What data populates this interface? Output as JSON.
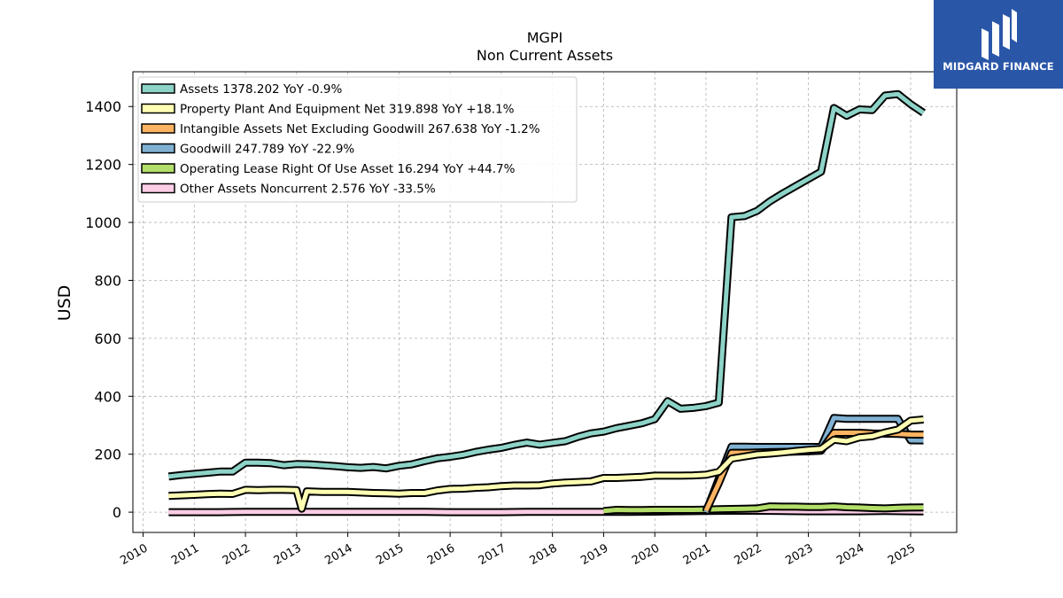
{
  "chart_data": {
    "type": "line",
    "title": "MGPI",
    "subtitle": "Non Current  Assets",
    "ylabel": "USD",
    "xlim": [
      2009.8,
      2025.9
    ],
    "ylim": [
      -70,
      1520
    ],
    "yticks": [
      0,
      200,
      400,
      600,
      800,
      1000,
      1200,
      1400
    ],
    "xticks": [
      2010,
      2011,
      2012,
      2013,
      2014,
      2015,
      2016,
      2017,
      2018,
      2019,
      2020,
      2021,
      2022,
      2023,
      2024,
      2025
    ],
    "grid": true,
    "legend_position": "upper-left",
    "series": [
      {
        "name": "Assets",
        "legend_label": "Assets  1378.202 YoY -0.9%",
        "color": "#8dd3c7",
        "x": [
          2010.5,
          2010.75,
          2011.0,
          2011.25,
          2011.5,
          2011.75,
          2012.0,
          2012.25,
          2012.5,
          2012.75,
          2013.0,
          2013.25,
          2013.5,
          2013.75,
          2014.0,
          2014.25,
          2014.5,
          2014.75,
          2015.0,
          2015.25,
          2015.5,
          2015.75,
          2016.0,
          2016.25,
          2016.5,
          2016.75,
          2017.0,
          2017.25,
          2017.5,
          2017.75,
          2018.0,
          2018.25,
          2018.5,
          2018.75,
          2019.0,
          2019.25,
          2019.5,
          2019.75,
          2020.0,
          2020.25,
          2020.5,
          2020.75,
          2021.0,
          2021.25,
          2021.5,
          2021.75,
          2022.0,
          2022.25,
          2022.5,
          2022.75,
          2023.0,
          2023.25,
          2023.5,
          2023.75,
          2024.0,
          2024.25,
          2024.5,
          2024.75,
          2025.0,
          2025.25
        ],
        "values": [
          123,
          128,
          132,
          136,
          140,
          140,
          171,
          171,
          169,
          162,
          166,
          165,
          162,
          159,
          155,
          153,
          156,
          151,
          160,
          165,
          176,
          186,
          191,
          198,
          208,
          216,
          222,
          232,
          240,
          233,
          239,
          245,
          260,
          272,
          278,
          290,
          298,
          307,
          321,
          383,
          357,
          360,
          366,
          378,
          1018,
          1022,
          1040,
          1073,
          1100,
          1125,
          1150,
          1175,
          1395,
          1368,
          1390,
          1388,
          1438,
          1443,
          1408,
          1378
        ]
      },
      {
        "name": "Property Plant And Equipment Net",
        "legend_label": "Property Plant And Equipment Net  319.898 YoY +18.1%",
        "color": "#ffffb3",
        "x": [
          2010.5,
          2010.75,
          2011.0,
          2011.25,
          2011.5,
          2011.75,
          2012.0,
          2012.25,
          2012.5,
          2012.75,
          2013.0,
          2013.1,
          2013.2,
          2013.5,
          2013.75,
          2014.0,
          2014.25,
          2014.5,
          2014.75,
          2015.0,
          2015.25,
          2015.5,
          2015.75,
          2016.0,
          2016.25,
          2016.5,
          2016.75,
          2017.0,
          2017.25,
          2017.5,
          2017.75,
          2018.0,
          2018.25,
          2018.5,
          2018.75,
          2019.0,
          2019.25,
          2019.5,
          2019.75,
          2020.0,
          2020.25,
          2020.5,
          2020.75,
          2021.0,
          2021.25,
          2021.5,
          2021.75,
          2022.0,
          2022.25,
          2022.5,
          2022.75,
          2023.0,
          2023.25,
          2023.5,
          2023.75,
          2024.0,
          2024.25,
          2024.5,
          2024.75,
          2025.0,
          2025.25
        ],
        "values": [
          56,
          58,
          60,
          62,
          64,
          63,
          77,
          76,
          77,
          77,
          76,
          12,
          72,
          70,
          70,
          70,
          68,
          66,
          65,
          64,
          66,
          66,
          75,
          80,
          81,
          84,
          86,
          90,
          92,
          92,
          93,
          99,
          102,
          104,
          106,
          118,
          118,
          120,
          122,
          126,
          126,
          126,
          127,
          129,
          139,
          185,
          192,
          199,
          202,
          206,
          211,
          215,
          218,
          250,
          245,
          258,
          262,
          275,
          285,
          316,
          320
        ]
      },
      {
        "name": "Intangible Assets Net Excluding Goodwill",
        "legend_label": "Intangible Assets Net Excluding Goodwill  267.638 YoY -1.2%",
        "color": "#fdb462",
        "x": [
          2021.0,
          2021.25,
          2021.5,
          2021.75,
          2022.0,
          2022.25,
          2022.5,
          2022.75,
          2023.0,
          2023.25,
          2023.5,
          2023.75,
          2024.0,
          2024.25,
          2024.5,
          2024.75,
          2025.0,
          2025.25
        ],
        "values": [
          5,
          100,
          205,
          205,
          206,
          207,
          208,
          209,
          210,
          212,
          274,
          274,
          274,
          272,
          271,
          270,
          268,
          267.6
        ]
      },
      {
        "name": "Goodwill",
        "legend_label": "Goodwill  247.789 YoY -22.9%",
        "color": "#80b1d3",
        "x": [
          2021.0,
          2021.25,
          2021.5,
          2021.75,
          2022.0,
          2022.25,
          2022.5,
          2022.75,
          2023.0,
          2023.25,
          2023.5,
          2023.75,
          2024.0,
          2024.25,
          2024.5,
          2024.75,
          2025.0,
          2025.25
        ],
        "values": [
          0,
          115,
          226,
          226,
          225,
          225,
          225,
          225,
          225,
          225,
          325,
          322,
          322,
          322,
          322,
          322,
          248,
          247.8
        ]
      },
      {
        "name": "Operating Lease Right Of Use Asset",
        "legend_label": "Operating Lease Right Of Use Asset  16.294 YoY +44.7%",
        "color": "#b3de69",
        "x": [
          2019.0,
          2019.25,
          2019.5,
          2019.75,
          2020.0,
          2020.25,
          2020.5,
          2020.75,
          2021.0,
          2021.25,
          2021.5,
          2021.75,
          2022.0,
          2022.25,
          2022.5,
          2022.75,
          2023.0,
          2023.25,
          2023.5,
          2023.75,
          2024.0,
          2024.25,
          2024.5,
          2024.75,
          2025.0,
          2025.25
        ],
        "values": [
          4,
          8,
          7,
          7,
          8,
          8,
          8,
          8,
          9,
          10,
          11,
          12,
          13,
          20,
          19,
          19,
          18,
          18,
          20,
          17,
          16,
          14,
          13,
          15,
          16,
          16.3
        ]
      },
      {
        "name": "Other Assets Noncurrent",
        "legend_label": "Other Assets Noncurrent  2.576 YoY -33.5%",
        "color": "#fccde5",
        "x": [
          2010.5,
          2011.0,
          2011.5,
          2012.0,
          2012.5,
          2013.0,
          2013.5,
          2014.0,
          2014.5,
          2015.0,
          2015.5,
          2016.0,
          2016.5,
          2017.0,
          2017.5,
          2018.0,
          2018.5,
          2019.0,
          2019.5,
          2020.0,
          2020.5,
          2021.0,
          2021.5,
          2022.0,
          2022.5,
          2023.0,
          2023.5,
          2024.0,
          2024.5,
          2025.0,
          2025.25
        ],
        "values": [
          0,
          0,
          0,
          1,
          1,
          1,
          1,
          1,
          1,
          1,
          1,
          0,
          0,
          0,
          1,
          1,
          1,
          1,
          1,
          2,
          3,
          4,
          5,
          5,
          4,
          3,
          3,
          3,
          4,
          3,
          2.6
        ]
      }
    ]
  },
  "branding": {
    "logo_text": "MIDGARD FINANCE"
  }
}
